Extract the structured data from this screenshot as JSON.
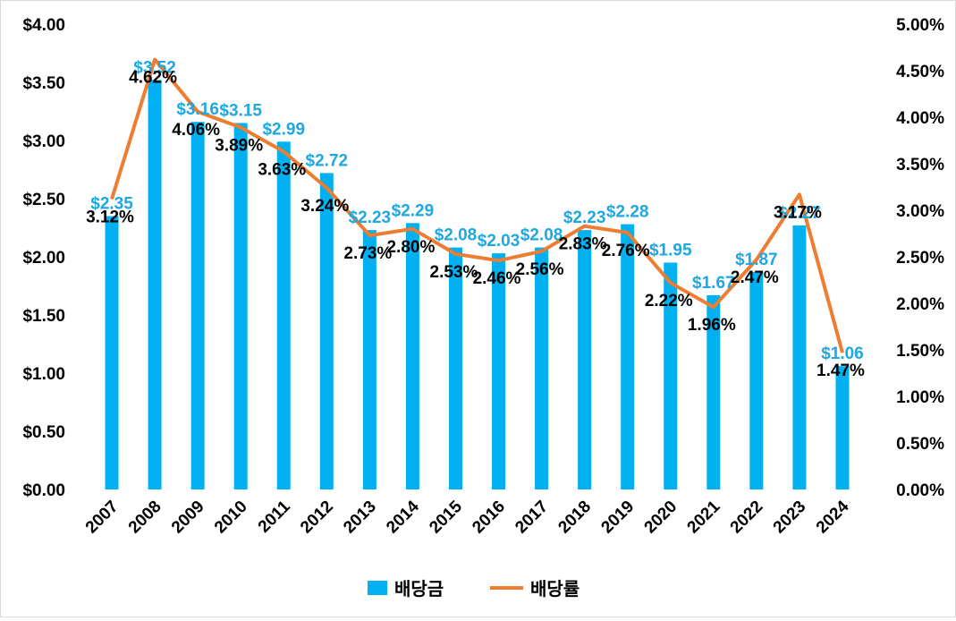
{
  "chart_data": {
    "type": "bar+line",
    "title": "",
    "categories": [
      "2007",
      "2008",
      "2009",
      "2010",
      "2011",
      "2012",
      "2013",
      "2014",
      "2015",
      "2016",
      "2017",
      "2018",
      "2019",
      "2020",
      "2021",
      "2022",
      "2023",
      "2024"
    ],
    "series": [
      {
        "name": "배당금",
        "type": "bar",
        "axis": "left",
        "values": [
          2.35,
          3.52,
          3.16,
          3.15,
          2.99,
          2.72,
          2.23,
          2.29,
          2.08,
          2.03,
          2.08,
          2.23,
          2.28,
          1.95,
          1.67,
          1.87,
          2.27,
          1.06
        ],
        "labels": [
          "$2.35",
          "$3.52",
          "$3.16",
          "$3.15",
          "$2.99",
          "$2.72",
          "$2.23",
          "$2.29",
          "$2.08",
          "$2.03",
          "$2.08",
          "$2.23",
          "$2.28",
          "$1.95",
          "$1.67",
          "$1.87",
          "$2.27",
          "$1.06"
        ],
        "color": "#00B0F0"
      },
      {
        "name": "배당률",
        "type": "line",
        "axis": "right",
        "values": [
          3.12,
          4.62,
          4.06,
          3.89,
          3.63,
          3.24,
          2.73,
          2.8,
          2.53,
          2.46,
          2.56,
          2.83,
          2.76,
          2.22,
          1.96,
          2.47,
          3.17,
          1.47
        ],
        "labels": [
          "3.12%",
          "4.62%",
          "4.06%",
          "3.89%",
          "3.63%",
          "3.24%",
          "2.73%",
          "2.80%",
          "2.53%",
          "2.46%",
          "2.56%",
          "2.83%",
          "2.76%",
          "2.22%",
          "1.96%",
          "2.47%",
          "3.17%",
          "1.47%"
        ],
        "color": "#ED7D31"
      }
    ],
    "y_left": {
      "range": [
        0,
        4
      ],
      "ticks": [
        0,
        0.5,
        1,
        1.5,
        2,
        2.5,
        3,
        3.5,
        4
      ],
      "tick_labels": [
        "$0.00",
        "$0.50",
        "$1.00",
        "$1.50",
        "$2.00",
        "$2.50",
        "$3.00",
        "$3.50",
        "$4.00"
      ]
    },
    "y_right": {
      "range": [
        0,
        5
      ],
      "ticks": [
        0,
        0.5,
        1,
        1.5,
        2,
        2.5,
        3,
        3.5,
        4,
        4.5,
        5
      ],
      "tick_labels": [
        "0.00%",
        "0.50%",
        "1.00%",
        "1.50%",
        "2.00%",
        "2.50%",
        "3.00%",
        "3.50%",
        "4.00%",
        "4.50%",
        "5.00%"
      ]
    },
    "grid": false,
    "legend": {
      "position": "bottom",
      "items": [
        {
          "label": "배당금",
          "symbol": "square",
          "color": "#00B0F0"
        },
        {
          "label": "배당률",
          "symbol": "line",
          "color": "#ED7D31"
        }
      ]
    }
  }
}
